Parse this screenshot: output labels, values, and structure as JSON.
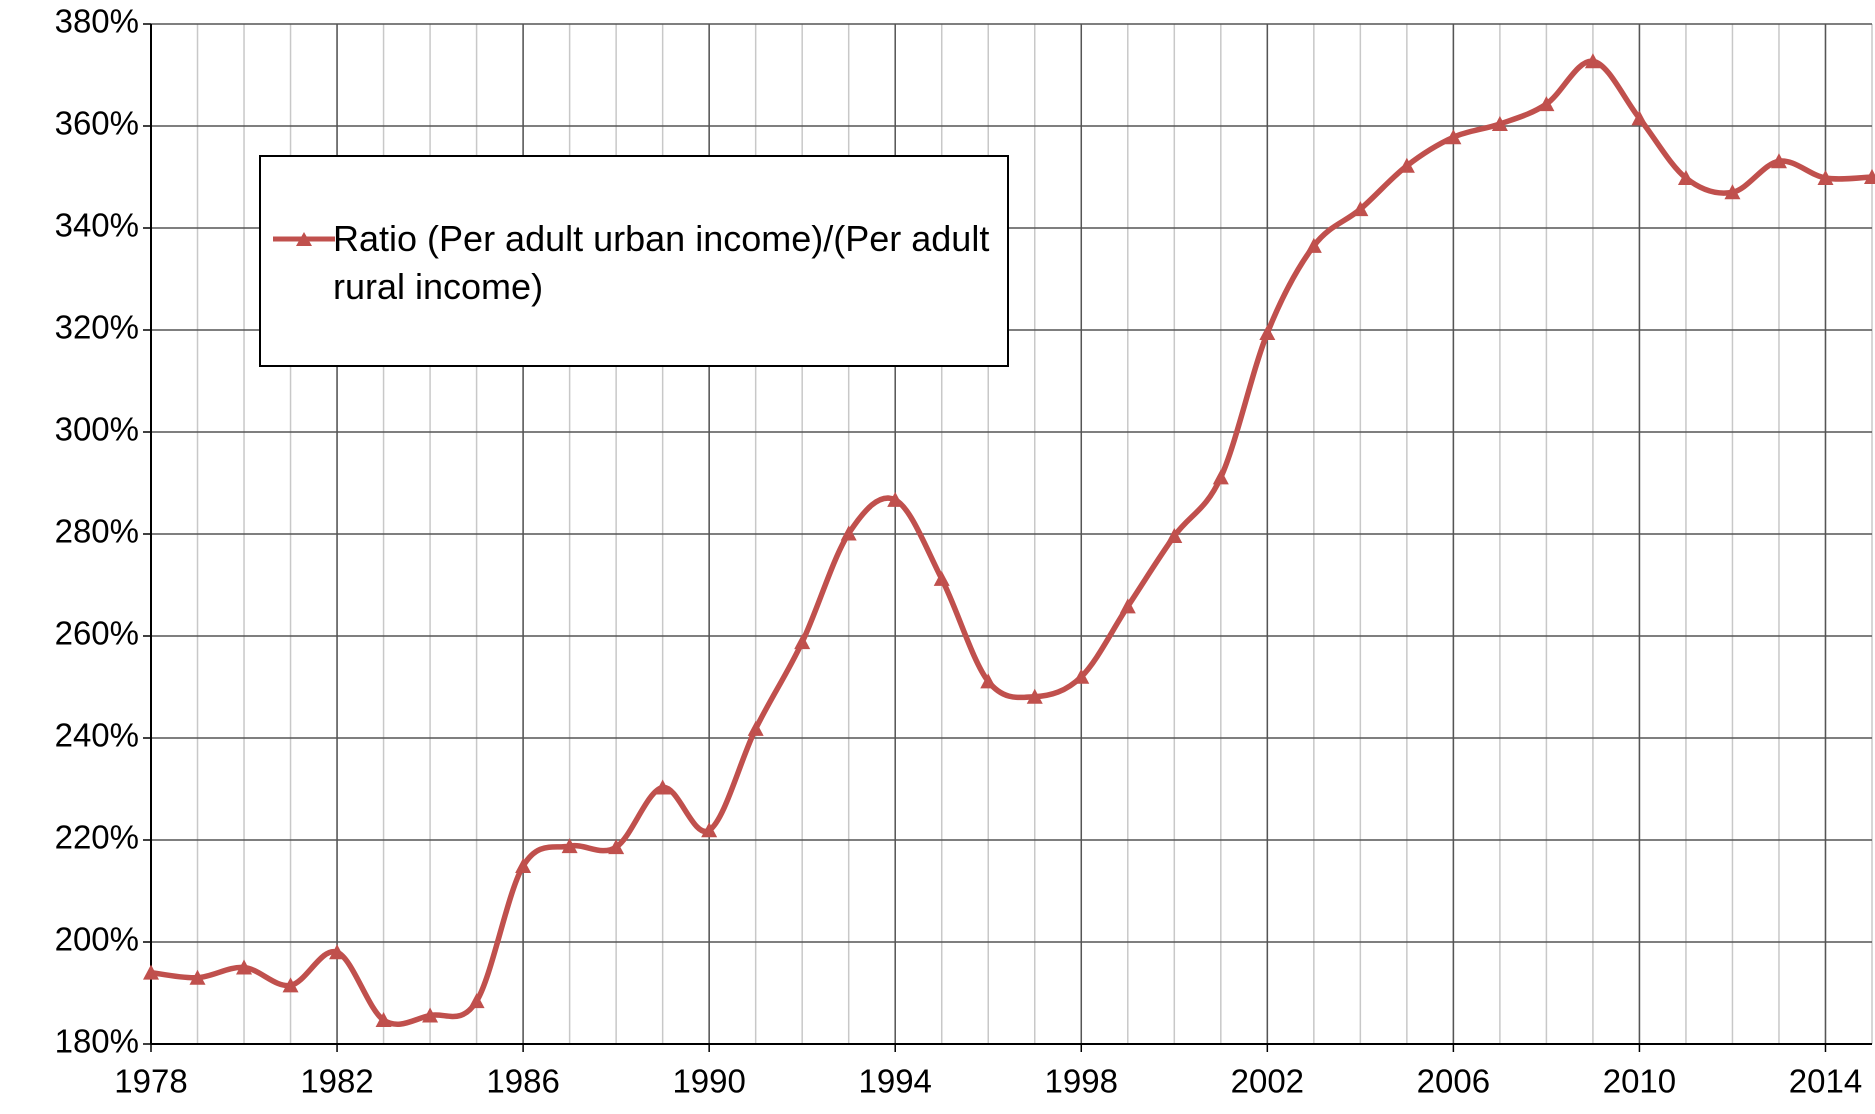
{
  "chart_data": {
    "type": "line",
    "x": [
      1978,
      1979,
      1980,
      1981,
      1982,
      1983,
      1984,
      1985,
      1986,
      1987,
      1988,
      1989,
      1990,
      1991,
      1992,
      1993,
      1994,
      1995,
      1996,
      1997,
      1998,
      1999,
      2000,
      2001,
      2002,
      2003,
      2004,
      2005,
      2006,
      2007,
      2008,
      2009,
      2010,
      2011,
      2012,
      2013,
      2014,
      2015
    ],
    "series": [
      {
        "name": "Ratio (Per adult urban income)/(Per adult rural income)",
        "color": "#c0504d",
        "values": [
          194,
          193,
          195,
          191.5,
          198,
          184.7,
          185.6,
          188.4,
          214.9,
          218.8,
          218.6,
          230.3,
          221.9,
          241.8,
          258.8,
          280.1,
          286.7,
          271.2,
          251.1,
          248.1,
          252,
          265.8,
          279.6,
          291.1,
          319.4,
          336.5,
          343.7,
          352.2,
          357.8,
          360.4,
          364.3,
          372.7,
          361.5,
          349.8,
          347,
          353.1,
          349.8,
          350
        ]
      }
    ],
    "xlim": [
      1978,
      2015
    ],
    "xticks": [
      1978,
      1982,
      1986,
      1990,
      1994,
      1998,
      2002,
      2006,
      2010,
      2014
    ],
    "ylim": [
      180,
      380
    ],
    "yticks": [
      {
        "value": 180,
        "label": "180%"
      },
      {
        "value": 200,
        "label": "200%"
      },
      {
        "value": 220,
        "label": "220%"
      },
      {
        "value": 240,
        "label": "240%"
      },
      {
        "value": 260,
        "label": "260%"
      },
      {
        "value": 280,
        "label": "280%"
      },
      {
        "value": 300,
        "label": "300%"
      },
      {
        "value": 320,
        "label": "320%"
      },
      {
        "value": 340,
        "label": "340%"
      },
      {
        "value": 360,
        "label": "360%"
      },
      {
        "value": 380,
        "label": "380%"
      }
    ],
    "grid": true,
    "legend": "upper left"
  }
}
